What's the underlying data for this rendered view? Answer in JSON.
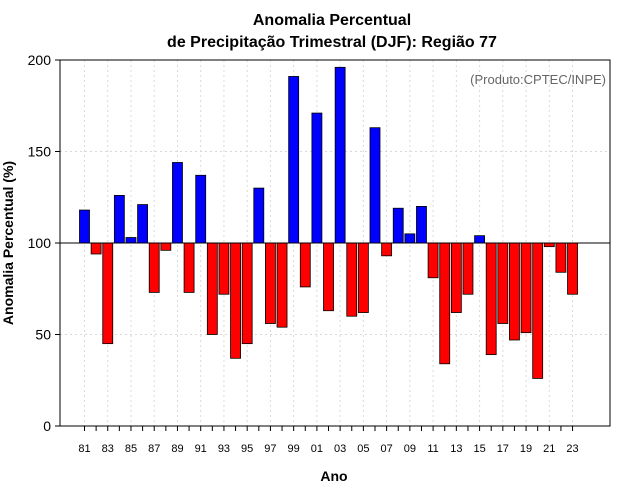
{
  "chart_data": {
    "type": "bar",
    "title_line1": "Anomalia Percentual",
    "title_line2": "de Precipitação Trimestral (DJF): Região 77",
    "xlabel": "Ano",
    "ylabel": "Anomalia Percentual (%)",
    "credit": "(Produto:CPTEC/INPE)",
    "baseline": 100,
    "ylim": [
      0,
      200
    ],
    "yticks": [
      "0",
      "50",
      "100",
      "150",
      "200"
    ],
    "grid": true,
    "colors": {
      "above": "#0000ff",
      "below": "#ff0000",
      "edge": "#000000"
    },
    "categories": [
      "81",
      "82",
      "83",
      "84",
      "85",
      "86",
      "87",
      "88",
      "89",
      "90",
      "91",
      "92",
      "93",
      "94",
      "95",
      "96",
      "97",
      "98",
      "99",
      "00",
      "01",
      "02",
      "03",
      "04",
      "05",
      "06",
      "07",
      "08",
      "09",
      "10",
      "11",
      "12",
      "13",
      "14",
      "15",
      "16",
      "17",
      "18",
      "19",
      "20",
      "21",
      "22",
      "23"
    ],
    "values": [
      118,
      94,
      45,
      126,
      103,
      121,
      73,
      96,
      144,
      73,
      137,
      50,
      72,
      37,
      45,
      130,
      56,
      54,
      191,
      76,
      171,
      63,
      196,
      60,
      62,
      163,
      93,
      119,
      105,
      120,
      81,
      34,
      62,
      72,
      104,
      39,
      56,
      47,
      51,
      26,
      98,
      84,
      72
    ],
    "xtick_labels": [
      "81",
      "83",
      "85",
      "87",
      "89",
      "91",
      "93",
      "95",
      "97",
      "99",
      "01",
      "03",
      "05",
      "07",
      "09",
      "11",
      "13",
      "15",
      "17",
      "19",
      "21",
      "23"
    ]
  }
}
